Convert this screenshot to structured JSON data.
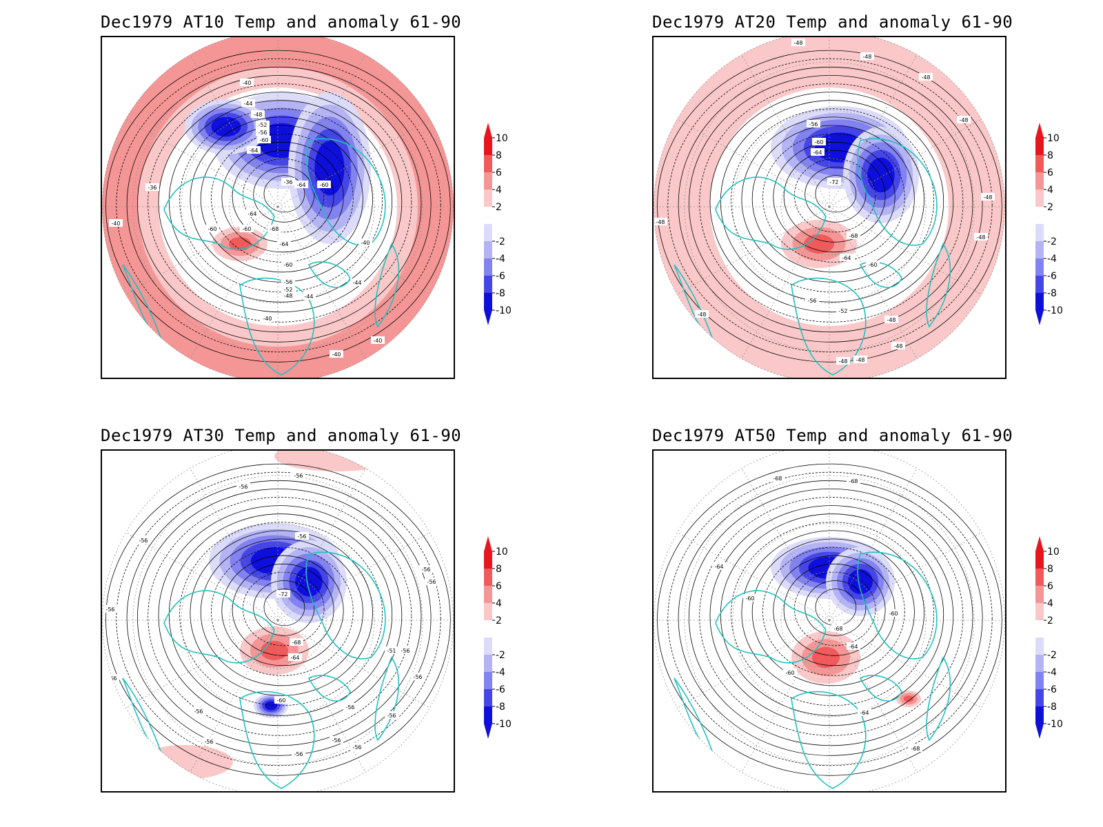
{
  "figure": {
    "panels": [
      {
        "title": "Dec1979 AT10 Temp and anomaly 61-90",
        "level": "AT10",
        "map": "north-polar-stereographic",
        "anomaly_centers": [
          {
            "sign": "negative",
            "magnitude": 10,
            "region": "north-pacific-siberia"
          },
          {
            "sign": "negative",
            "magnitude": 8,
            "region": "eurasia"
          },
          {
            "sign": "positive",
            "magnitude": 4,
            "region": "outer-ring"
          }
        ],
        "contour_labels": [
          "-40",
          "-44",
          "-48",
          "-52",
          "-56",
          "-60",
          "-64",
          "-64",
          "-60",
          "-36",
          "-40",
          "-60",
          "-60",
          "-64",
          "-68",
          "-64",
          "-60",
          "-56",
          "-52",
          "-48",
          "-44",
          "-40",
          "-44",
          "-40",
          "-40",
          "-40",
          "-36"
        ]
      },
      {
        "title": "Dec1979 AT20 Temp and anomaly 61-90",
        "level": "AT20",
        "map": "north-polar-stereographic",
        "anomaly_centers": [
          {
            "sign": "negative",
            "magnitude": 10,
            "region": "siberia-arctic"
          },
          {
            "sign": "positive",
            "magnitude": 6,
            "region": "north-atlantic-greenland"
          },
          {
            "sign": "positive",
            "magnitude": 2,
            "region": "outer-ring"
          }
        ],
        "contour_labels": [
          "-48",
          "-48",
          "-48",
          "-48",
          "-56",
          "-60",
          "-64",
          "-72",
          "-48",
          "-48",
          "-48",
          "-68",
          "-64",
          "-60",
          "-56",
          "-52",
          "-48",
          "-48",
          "-48",
          "-48",
          "-48"
        ]
      },
      {
        "title": "Dec1979 AT30 Temp and anomaly 61-90",
        "level": "AT30",
        "map": "north-polar-stereographic",
        "anomaly_centers": [
          {
            "sign": "negative",
            "magnitude": 10,
            "region": "siberia-arctic"
          },
          {
            "sign": "positive",
            "magnitude": 6,
            "region": "north-atlantic-greenland"
          },
          {
            "sign": "positive",
            "magnitude": 2,
            "region": "pacific-rim"
          }
        ],
        "contour_labels": [
          "-56",
          "-56",
          "-56",
          "-56",
          "-72",
          "-56",
          "-56",
          "-56",
          "-68",
          "-64",
          "-51",
          "-56",
          "-56",
          "-60",
          "-56",
          "-56",
          "-56",
          "-56",
          "-56",
          "-56",
          "-56",
          "-56"
        ]
      },
      {
        "title": "Dec1979 AT50 Temp and anomaly 61-90",
        "level": "AT50",
        "map": "north-polar-stereographic",
        "anomaly_centers": [
          {
            "sign": "negative",
            "magnitude": 10,
            "region": "siberia-arctic"
          },
          {
            "sign": "positive",
            "magnitude": 6,
            "region": "north-atlantic-greenland"
          }
        ],
        "contour_labels": [
          "-68",
          "-68",
          "-64",
          "-60",
          "-60",
          "-68",
          "-64",
          "-60",
          "-64",
          "-68"
        ]
      }
    ],
    "colorbar": {
      "labels": [
        "10",
        "8",
        "6",
        "4",
        "2",
        "-2",
        "-4",
        "-6",
        "-8",
        "-10"
      ],
      "colors": [
        "#e8141e",
        "#f05a5a",
        "#f59696",
        "#fac8c8",
        "#ffffff",
        "#dcdcfa",
        "#b4b4f5",
        "#8282f0",
        "#4646e6",
        "#0f0fdc"
      ]
    },
    "colors": {
      "coastline": "#20c0c0",
      "contour": "#000000",
      "grid": "#909090"
    }
  }
}
